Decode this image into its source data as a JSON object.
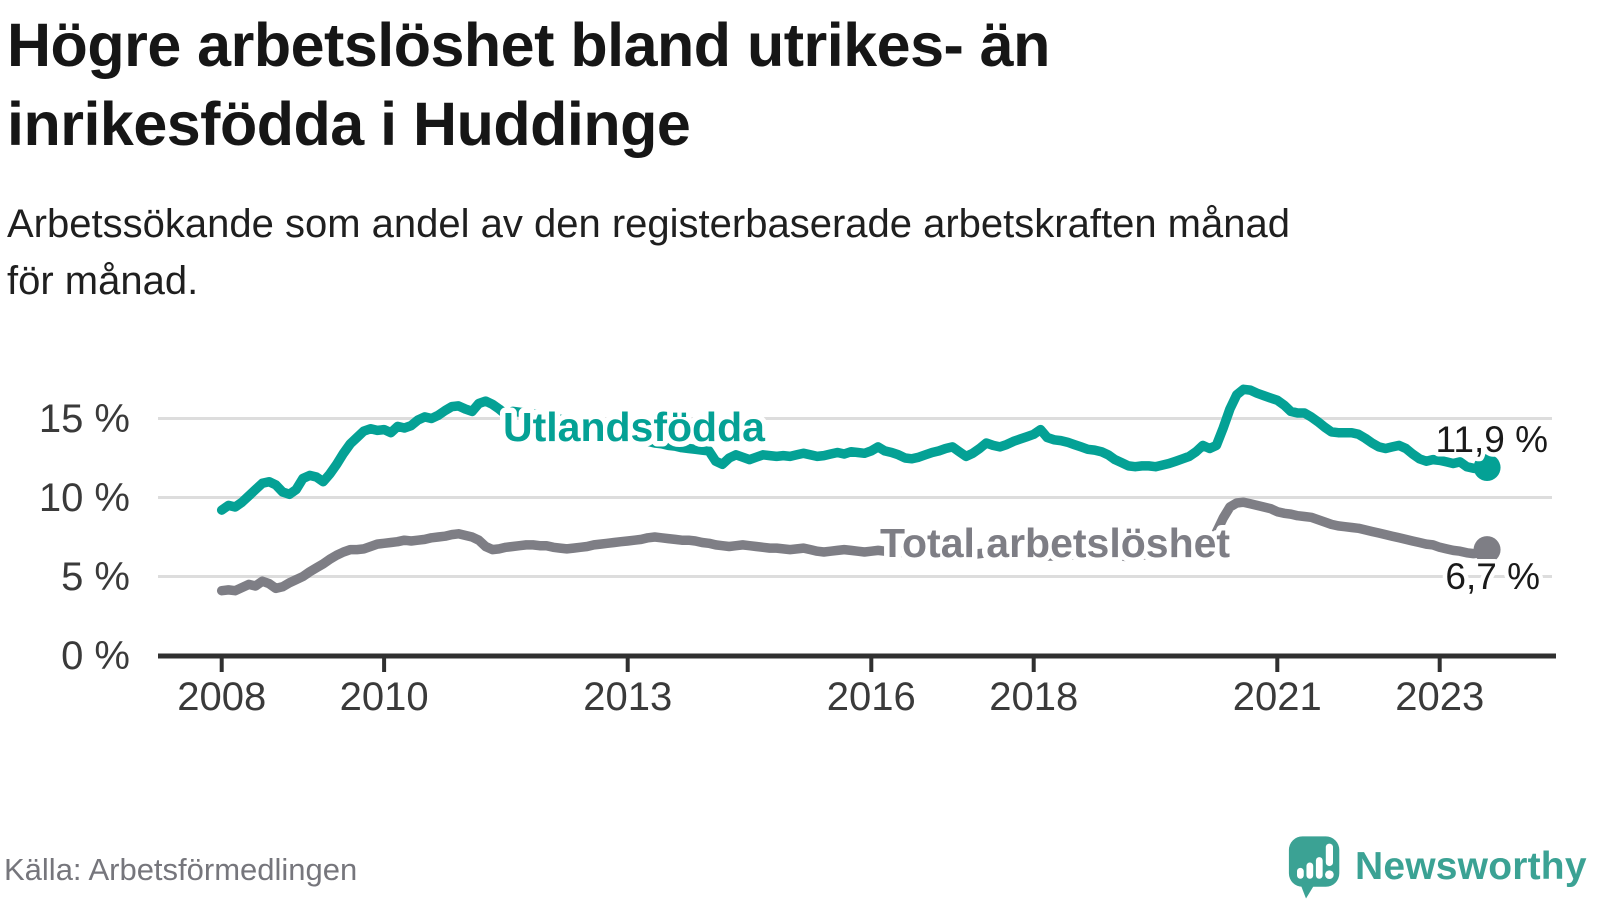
{
  "header": {
    "title_lines": [
      "Högre arbetslöshet bland utrikes- än",
      "inrikesfödda i Huddinge"
    ],
    "subtitle_lines": [
      "Arbetssökande som andel av den registerbaserade arbetskraften månad",
      "för månad."
    ]
  },
  "footer": {
    "source": "Källa: Arbetsförmedlingen",
    "brand": "Newsworthy"
  },
  "colors": {
    "teal_line": "#04A195",
    "gray_line": "#7E7E85",
    "logo_teal": "#3BA294",
    "grid": "#DDDDDD",
    "axis": "#303030",
    "tick_text": "#3A3A3A",
    "value_text": "#1A1A1A"
  },
  "chart_data": {
    "type": "line",
    "unit": "%",
    "frequency": "monthly",
    "x_start": "2008-01",
    "x_end": "2023-08",
    "x_ticks": [
      {
        "label": "2008",
        "year": 2008
      },
      {
        "label": "2010",
        "year": 2010
      },
      {
        "label": "2013",
        "year": 2013
      },
      {
        "label": "2016",
        "year": 2016
      },
      {
        "label": "2018",
        "year": 2018
      },
      {
        "label": "2021",
        "year": 2021
      },
      {
        "label": "2023",
        "year": 2023
      }
    ],
    "y_ticks": [
      {
        "label": "0 %",
        "value": 0
      },
      {
        "label": "5 %",
        "value": 5
      },
      {
        "label": "10 %",
        "value": 10
      },
      {
        "label": "15 %",
        "value": 15
      }
    ],
    "ylim": [
      0,
      17.6
    ],
    "grid": true,
    "legend_position": "inline-labels",
    "series": [
      {
        "name": "Utlandsfödda",
        "color": "#04A195",
        "end_label": "11,9 %",
        "end_value": 11.9,
        "values": [
          9.2,
          9.5,
          9.4,
          9.7,
          10.1,
          10.5,
          10.9,
          11.0,
          10.8,
          10.35,
          10.2,
          10.5,
          11.2,
          11.4,
          11.3,
          11.0,
          11.5,
          12.1,
          12.8,
          13.4,
          13.8,
          14.2,
          14.35,
          14.25,
          14.3,
          14.1,
          14.5,
          14.4,
          14.55,
          14.9,
          15.1,
          15.0,
          15.2,
          15.5,
          15.75,
          15.8,
          15.6,
          15.45,
          15.95,
          16.1,
          15.9,
          15.6,
          15.25,
          15.45,
          15.4,
          15.35,
          15.3,
          15.25,
          15.15,
          15.05,
          14.95,
          14.85,
          14.75,
          14.6,
          14.5,
          14.4,
          14.3,
          14.15,
          14.05,
          13.95,
          13.85,
          13.75,
          13.65,
          13.55,
          13.45,
          13.4,
          13.3,
          13.25,
          13.15,
          13.1,
          13.05,
          13.0,
          12.95,
          12.3,
          12.1,
          12.5,
          12.7,
          12.55,
          12.4,
          12.55,
          12.7,
          12.65,
          12.6,
          12.65,
          12.6,
          12.7,
          12.8,
          12.7,
          12.6,
          12.65,
          12.75,
          12.85,
          12.75,
          12.9,
          12.85,
          12.8,
          12.95,
          13.2,
          12.95,
          12.85,
          12.7,
          12.5,
          12.45,
          12.55,
          12.7,
          12.85,
          12.95,
          13.1,
          13.2,
          12.9,
          12.6,
          12.8,
          13.1,
          13.45,
          13.3,
          13.2,
          13.35,
          13.55,
          13.7,
          13.85,
          14.0,
          14.3,
          13.8,
          13.65,
          13.6,
          13.5,
          13.35,
          13.2,
          13.05,
          13.0,
          12.9,
          12.7,
          12.4,
          12.2,
          12.0,
          11.95,
          12.0,
          12.0,
          11.95,
          12.05,
          12.15,
          12.3,
          12.45,
          12.6,
          12.9,
          13.3,
          13.1,
          13.3,
          14.4,
          15.6,
          16.5,
          16.85,
          16.8,
          16.6,
          16.45,
          16.3,
          16.15,
          15.85,
          15.45,
          15.35,
          15.35,
          15.1,
          14.8,
          14.45,
          14.15,
          14.1,
          14.1,
          14.1,
          14.0,
          13.75,
          13.45,
          13.2,
          13.1,
          13.2,
          13.3,
          13.1,
          12.75,
          12.45,
          12.3,
          12.4,
          12.35,
          12.25,
          12.15,
          12.25,
          11.95,
          11.85,
          11.8,
          11.9
        ]
      },
      {
        "name": "Total arbetslöshet",
        "color": "#7E7E85",
        "end_label": "6,7 %",
        "end_value": 6.7,
        "values": [
          4.1,
          4.15,
          4.1,
          4.3,
          4.5,
          4.4,
          4.7,
          4.55,
          4.25,
          4.35,
          4.6,
          4.8,
          5.0,
          5.3,
          5.55,
          5.8,
          6.1,
          6.35,
          6.55,
          6.7,
          6.7,
          6.75,
          6.9,
          7.05,
          7.1,
          7.15,
          7.2,
          7.3,
          7.25,
          7.3,
          7.35,
          7.45,
          7.5,
          7.55,
          7.65,
          7.7,
          7.6,
          7.5,
          7.3,
          6.9,
          6.7,
          6.75,
          6.85,
          6.9,
          6.95,
          7.0,
          7.0,
          6.95,
          6.95,
          6.85,
          6.8,
          6.75,
          6.8,
          6.85,
          6.9,
          7.0,
          7.05,
          7.1,
          7.15,
          7.2,
          7.25,
          7.3,
          7.35,
          7.45,
          7.5,
          7.45,
          7.4,
          7.35,
          7.3,
          7.3,
          7.25,
          7.15,
          7.1,
          7.0,
          6.95,
          6.9,
          6.95,
          7.0,
          6.95,
          6.9,
          6.85,
          6.8,
          6.8,
          6.75,
          6.7,
          6.75,
          6.8,
          6.7,
          6.6,
          6.55,
          6.6,
          6.65,
          6.7,
          6.65,
          6.6,
          6.55,
          6.6,
          6.65,
          6.6,
          6.6,
          6.55,
          6.5,
          6.55,
          6.6,
          6.6,
          6.65,
          6.6,
          6.55,
          6.5,
          6.45,
          6.4,
          6.4,
          6.45,
          6.5,
          6.45,
          6.4,
          6.45,
          6.5,
          6.5,
          6.45,
          6.4,
          6.35,
          6.3,
          6.3,
          6.35,
          6.4,
          6.35,
          6.3,
          6.35,
          6.4,
          6.4,
          6.35,
          6.3,
          6.3,
          6.25,
          6.3,
          6.35,
          6.4,
          6.45,
          6.5,
          6.55,
          6.6,
          6.65,
          6.7,
          6.7,
          6.75,
          7.0,
          7.8,
          8.7,
          9.4,
          9.65,
          9.7,
          9.6,
          9.5,
          9.4,
          9.3,
          9.1,
          9.0,
          8.95,
          8.85,
          8.8,
          8.75,
          8.6,
          8.45,
          8.3,
          8.2,
          8.15,
          8.1,
          8.05,
          7.95,
          7.85,
          7.75,
          7.65,
          7.55,
          7.45,
          7.35,
          7.25,
          7.15,
          7.05,
          7.0,
          6.85,
          6.75,
          6.65,
          6.6,
          6.5,
          6.45,
          6.5,
          6.7
        ]
      }
    ]
  }
}
